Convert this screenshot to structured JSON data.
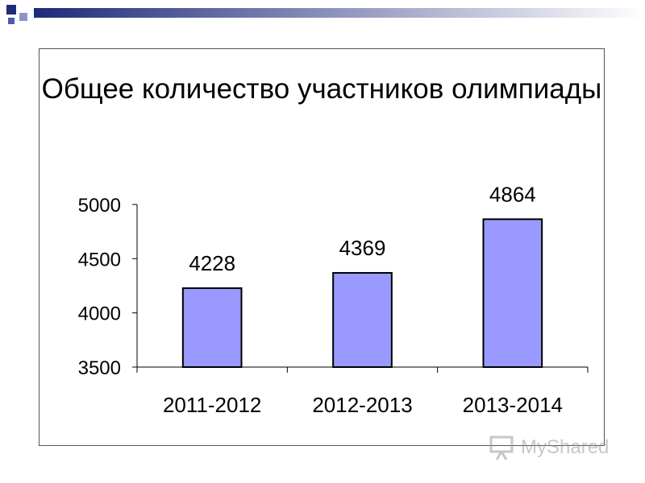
{
  "chart_data": {
    "type": "bar",
    "title": "Общее количество участников олимпиады",
    "categories": [
      "2011-2012",
      "2012-2013",
      "2013-2014"
    ],
    "values": [
      4228,
      4369,
      4864
    ],
    "data_labels": [
      "4228",
      "4369",
      "4864"
    ],
    "ylim": [
      3500,
      5000
    ],
    "yticks": [
      3500,
      4000,
      4500,
      5000
    ],
    "ytick_labels": [
      "3500",
      "4000",
      "4500",
      "5000"
    ],
    "xlabel": "",
    "ylabel": "",
    "grid": false,
    "legend": "none",
    "bar_color": "#9999ff",
    "bar_border_color": "#000000"
  },
  "watermark": {
    "text": "MyShared",
    "icon": "presentation-board-icon"
  }
}
